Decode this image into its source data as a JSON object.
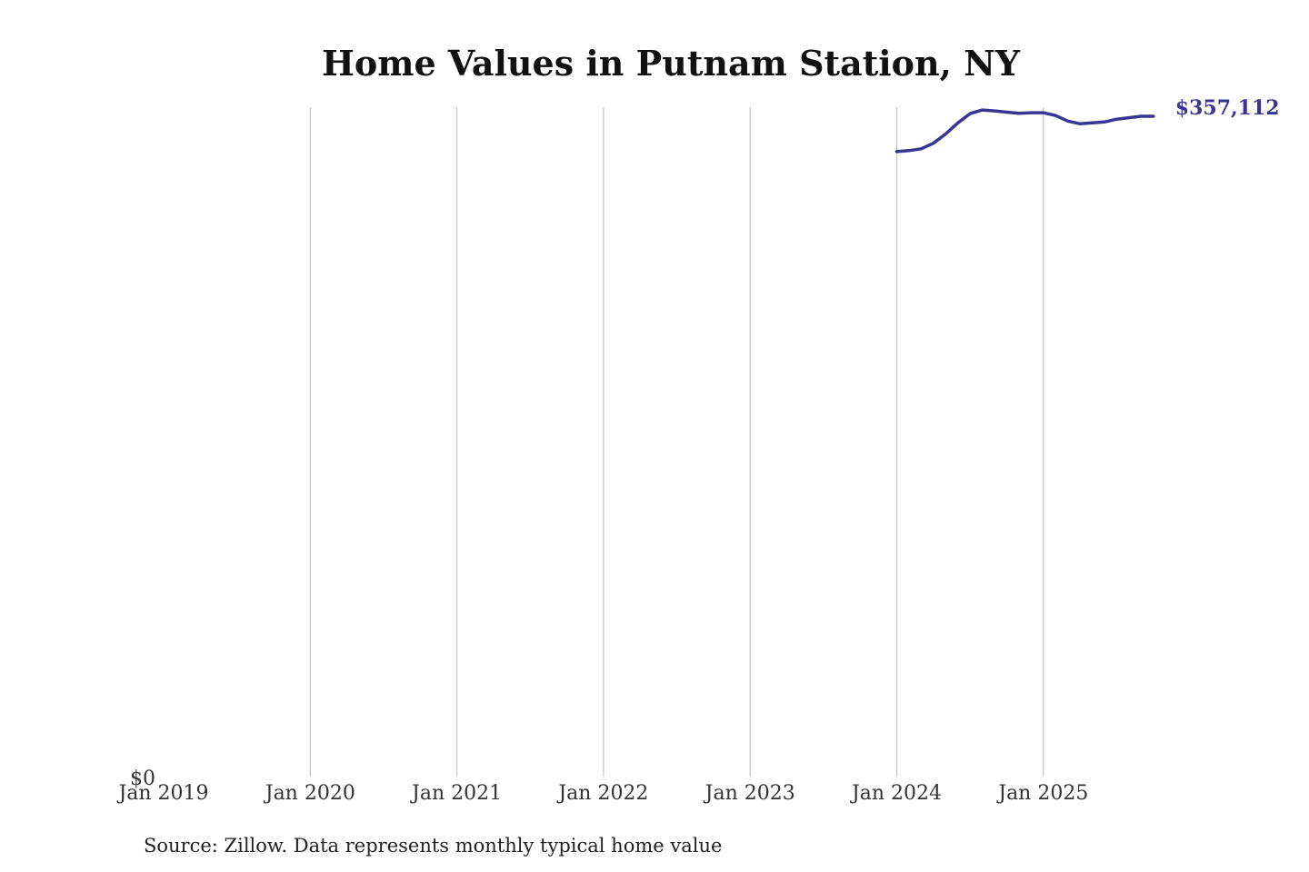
{
  "chart_data": {
    "type": "line",
    "title": "Home Values in Putnam Station, NY",
    "xlabel": "",
    "ylabel": "",
    "x_ticks": [
      "Jan 2019",
      "Jan 2020",
      "Jan 2021",
      "Jan 2022",
      "Jan 2023",
      "Jan 2024",
      "Jan 2025"
    ],
    "y_ticks": [
      "$0"
    ],
    "ylim": [
      0,
      362000
    ],
    "xlim": [
      "2019-01",
      "2025-10"
    ],
    "grid": "vertical",
    "color": "#3a3494",
    "series": [
      {
        "x": [
          "2024-01",
          "2024-02",
          "2024-03",
          "2024-04",
          "2024-05",
          "2024-06",
          "2024-07",
          "2024-08",
          "2024-09",
          "2024-10",
          "2024-11",
          "2024-12",
          "2025-01",
          "2025-02",
          "2025-03",
          "2025-04",
          "2025-05",
          "2025-06",
          "2025-07",
          "2025-08",
          "2025-09",
          "2025-10"
        ],
        "values": [
          338000,
          338500,
          339500,
          342500,
          347500,
          353500,
          358500,
          360500,
          360000,
          359300,
          358700,
          359000,
          359000,
          357500,
          354500,
          353000,
          353500,
          354000,
          355500,
          356300,
          357112,
          357112
        ]
      }
    ],
    "end_label": "$357,112"
  },
  "source_note": "Source: Zillow. Data represents monthly typical home value"
}
